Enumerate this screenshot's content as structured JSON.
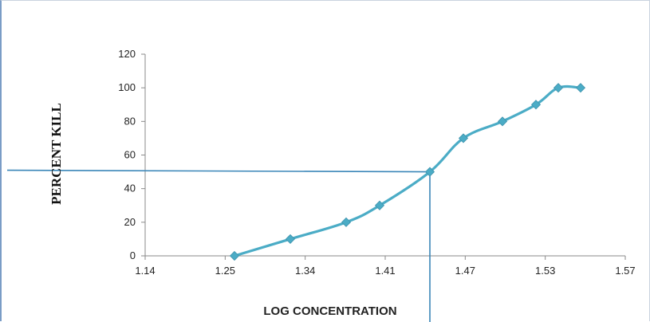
{
  "chart_data": {
    "type": "line",
    "title": "",
    "xlabel": "LOG CONCENTRATION",
    "ylabel": "PERCENT    KILL",
    "x_ticks": [
      "1.14",
      "1.25",
      "1.34",
      "1.41",
      "1.47",
      "1.53",
      "1.57"
    ],
    "y_ticks": [
      "0",
      "20",
      "40",
      "60",
      "80",
      "100",
      "120"
    ],
    "xlim": [
      1.14,
      1.57
    ],
    "ylim": [
      0,
      120
    ],
    "grid": false,
    "legend": "none",
    "series": [
      {
        "color": "#4bacc6",
        "x": [
          1.22,
          1.27,
          1.32,
          1.35,
          1.395,
          1.425,
          1.46,
          1.49,
          1.51,
          1.53
        ],
        "y": [
          0,
          10,
          20,
          30,
          50,
          70,
          80,
          90,
          100,
          100
        ]
      }
    ],
    "reference_lines": {
      "color": "#3a86b8",
      "lc50_x": 1.395,
      "lc50_y": 50
    }
  }
}
